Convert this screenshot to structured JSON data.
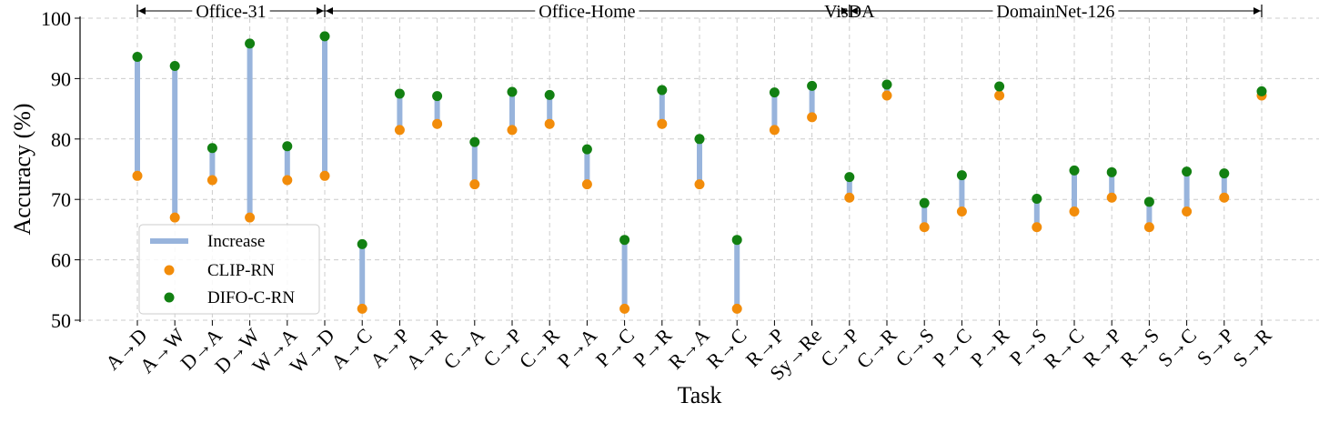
{
  "chart_data": {
    "type": "scatter",
    "title": "",
    "xlabel": "Task",
    "ylabel": "Accuracy (%)",
    "ylim": [
      50,
      100
    ],
    "yticks": [
      50,
      60,
      70,
      80,
      90,
      100
    ],
    "grid": true,
    "legend_position": "lower-left",
    "categories": [
      "A→D",
      "A→W",
      "D→A",
      "D→W",
      "W→A",
      "W→D",
      "A→C",
      "A→P",
      "A→R",
      "C→A",
      "C→P",
      "C→R",
      "P→A",
      "P→C",
      "P→R",
      "R→A",
      "R→C",
      "R→P",
      "Sy→Re",
      "C→P",
      "C→R",
      "C→S",
      "P→C",
      "P→R",
      "P→S",
      "R→C",
      "R→P",
      "R→S",
      "S→C",
      "S→P",
      "S→R"
    ],
    "series": [
      {
        "name": "Increase",
        "kind": "line",
        "color": "#98b4dc"
      },
      {
        "name": "CLIP-RN",
        "kind": "point",
        "color": "#f28c0a",
        "values": [
          73.9,
          67.0,
          73.2,
          67.0,
          73.2,
          73.9,
          51.9,
          81.5,
          82.5,
          72.5,
          81.5,
          82.5,
          72.5,
          51.9,
          82.5,
          72.5,
          51.9,
          81.5,
          83.6,
          70.3,
          87.2,
          65.4,
          68.0,
          87.2,
          65.4,
          68.0,
          70.3,
          65.4,
          68.0,
          70.3,
          87.2
        ]
      },
      {
        "name": "DIFO-C-RN",
        "kind": "point",
        "color": "#128012",
        "values": [
          93.6,
          92.1,
          78.5,
          95.8,
          78.8,
          97.0,
          62.6,
          87.5,
          87.1,
          79.5,
          87.8,
          87.3,
          78.3,
          63.3,
          88.1,
          80.0,
          63.3,
          87.7,
          88.8,
          73.7,
          89.0,
          69.4,
          74.0,
          88.7,
          70.1,
          74.8,
          74.5,
          69.6,
          74.6,
          74.3,
          87.9
        ]
      }
    ],
    "groups": [
      {
        "name": "Office-31",
        "start": 0,
        "end": 5
      },
      {
        "name": "Office-Home",
        "start": 5,
        "end": 19
      },
      {
        "name": "VisDA",
        "start": 19,
        "end": 19
      },
      {
        "name": "DomainNet-126",
        "start": 19,
        "end": 30
      }
    ]
  }
}
